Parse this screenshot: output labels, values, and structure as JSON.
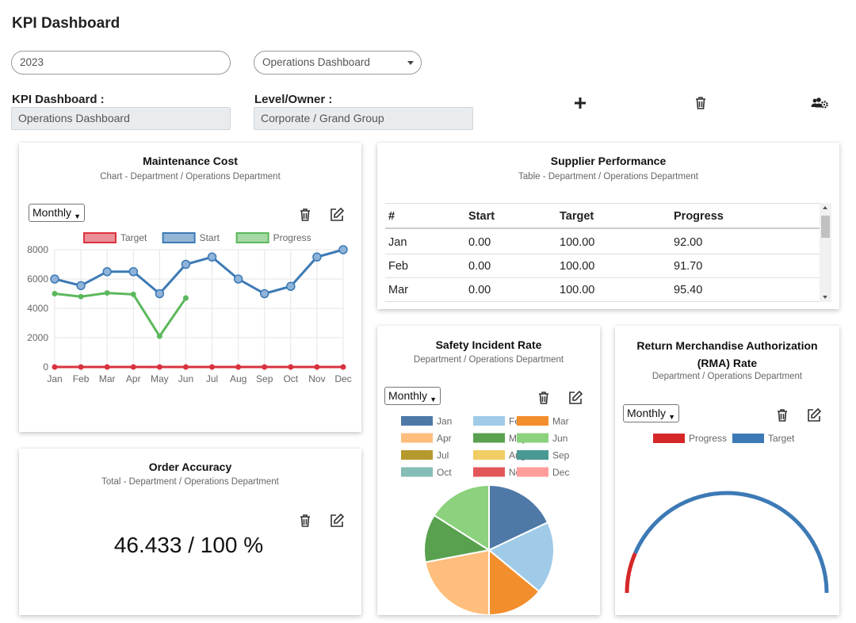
{
  "header": {
    "title": "KPI Dashboard"
  },
  "filters": {
    "year_value": "2023",
    "dashboard_select": "Operations Dashboard"
  },
  "info": {
    "dashboard_label": "KPI Dashboard :",
    "dashboard_value": "Operations Dashboard",
    "level_label": "Level/Owner :",
    "level_value": "Corporate / Grand Group"
  },
  "icons": {
    "add": "plus-icon",
    "delete": "trash-icon",
    "users": "users-cog-icon",
    "edit": "edit-icon"
  },
  "maintenance": {
    "title": "Maintenance Cost",
    "subtitle": "Chart - Department / Operations Department",
    "period": "Monthly",
    "chart_data": {
      "type": "line",
      "categories": [
        "Jan",
        "Feb",
        "Mar",
        "Apr",
        "May",
        "Jun",
        "Jul",
        "Aug",
        "Sep",
        "Oct",
        "Nov",
        "Dec"
      ],
      "series": [
        {
          "name": "Target",
          "color": "#d9333f",
          "values": [
            0,
            0,
            0,
            0,
            0,
            0,
            0,
            0,
            0,
            0,
            0,
            0
          ]
        },
        {
          "name": "Start",
          "color": "#3d7ab5",
          "values": [
            6000,
            5550,
            6500,
            6500,
            5000,
            7000,
            7500,
            6000,
            5000,
            5500,
            7500,
            8000
          ]
        },
        {
          "name": "Progress",
          "color": "#5cb85c",
          "values": [
            5000,
            4800,
            5050,
            4950,
            2100,
            4700,
            null,
            null,
            null,
            null,
            null,
            null
          ]
        }
      ],
      "yticks": [
        "8000",
        "6000",
        "4000",
        "2000",
        "0"
      ],
      "ylim": [
        0,
        8000
      ]
    }
  },
  "supplier": {
    "title": "Supplier Performance",
    "subtitle": "Table - Department / Operations Department",
    "columns": [
      "#",
      "Start",
      "Target",
      "Progress"
    ],
    "rows": [
      [
        "Jan",
        "0.00",
        "100.00",
        "92.00"
      ],
      [
        "Feb",
        "0.00",
        "100.00",
        "91.70"
      ],
      [
        "Mar",
        "0.00",
        "100.00",
        "95.40"
      ]
    ]
  },
  "order": {
    "title": "Order Accuracy",
    "subtitle": "Total - Department / Operations Department",
    "value": "46.433 / 100 %"
  },
  "safety": {
    "title": "Safety Incident Rate",
    "subtitle": "Department / Operations Department",
    "period": "Monthly",
    "chart_data": {
      "type": "pie",
      "categories": [
        "Jan",
        "Feb",
        "Mar",
        "Apr",
        "May",
        "Jun",
        "Jul",
        "Aug",
        "Sep",
        "Oct",
        "Nov",
        "Dec"
      ],
      "colors": [
        "#4e79a7",
        "#a0cbe8",
        "#f28e2b",
        "#ffbe7d",
        "#59a14f",
        "#8cd17d",
        "#b6992d",
        "#f1ce63",
        "#499894",
        "#86bcb6",
        "#e15759",
        "#ff9d9a"
      ],
      "values": [
        18,
        18,
        14,
        22,
        12,
        16,
        0,
        0,
        0,
        0,
        0,
        0
      ]
    }
  },
  "rma": {
    "title": "Return Merchandise Authorization (RMA) Rate",
    "subtitle": "Department / Operations Department",
    "period": "Monthly",
    "chart_data": {
      "type": "gauge",
      "series": [
        {
          "name": "Progress",
          "color": "#d62728",
          "value": 0.13
        },
        {
          "name": "Target",
          "color": "#3d7ab5",
          "value": 1.0
        }
      ]
    }
  }
}
